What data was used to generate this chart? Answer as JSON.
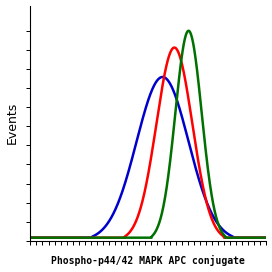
{
  "title": "Phospho-p44/42 MAPK APC conjugate",
  "ylabel": "Events",
  "xlabel": "Phospho-p44/42 MAPK APC conjugate",
  "background_color": "#ffffff",
  "curves": [
    {
      "color": "#0000cc",
      "mean": 3.3,
      "std": 0.55,
      "amplitude": 0.78,
      "label": "Blue"
    },
    {
      "color": "#ff0000",
      "mean": 3.55,
      "std": 0.38,
      "amplitude": 0.92,
      "label": "Red"
    },
    {
      "color": "#007000",
      "mean": 3.85,
      "std": 0.28,
      "amplitude": 1.0,
      "label": "Green"
    }
  ],
  "xlim": [
    0.5,
    5.5
  ],
  "ylim": [
    0,
    1.12
  ],
  "baseline": 0.015,
  "title_fontsize": 7,
  "ylabel_fontsize": 9,
  "linewidth": 1.8,
  "xtick_count": 40,
  "ytick_count": 12
}
